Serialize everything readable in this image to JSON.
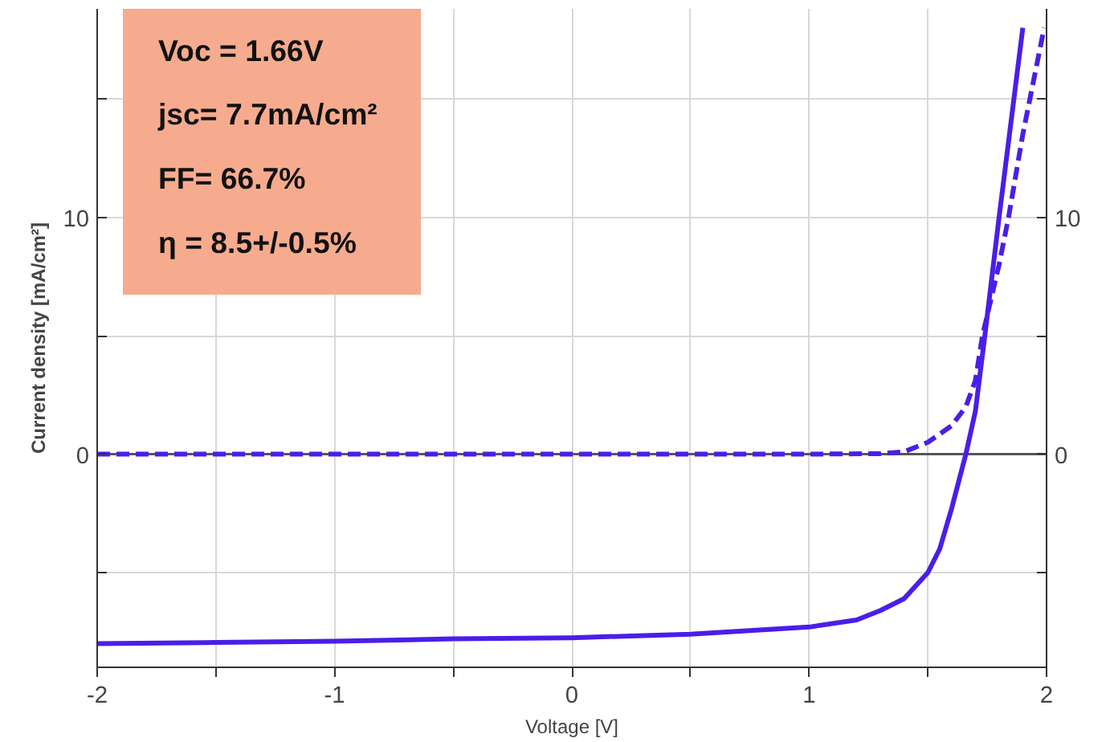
{
  "chart_data": {
    "type": "line",
    "xlabel": "Voltage [V]",
    "ylabel": "Current density [mA/cm²]",
    "xlim": [
      -2,
      2
    ],
    "ylim": [
      -9,
      18.8
    ],
    "y2lim": [
      -9,
      18.8
    ],
    "xticks": [
      -2,
      {
        "value": -1.5,
        "label": null
      },
      -1,
      {
        "value": -0.5,
        "label": null
      },
      0,
      {
        "value": 0.5,
        "label": null
      },
      1,
      {
        "value": 1.5,
        "label": null
      },
      2
    ],
    "yticks": [
      {
        "value": -5,
        "label": null
      },
      0,
      {
        "value": 5,
        "label": null
      },
      10,
      {
        "value": 15,
        "label": null
      }
    ],
    "y2ticks": [
      {
        "value": -5,
        "label": null
      },
      0,
      {
        "value": 5,
        "label": null
      },
      10,
      {
        "value": 15,
        "label": null
      }
    ],
    "grid": true,
    "marker": "none",
    "ref_lines": [
      {
        "axis": "y",
        "value": 0,
        "color": "#555555"
      }
    ],
    "series": [
      {
        "color": "#4a1ee8",
        "line_style": "solid",
        "x": [
          -2,
          -1.5,
          -1,
          -0.5,
          0,
          0.5,
          1,
          1.2,
          1.3,
          1.4,
          1.5,
          1.55,
          1.6,
          1.66,
          1.7,
          1.74,
          1.8,
          1.85,
          1.9
        ],
        "values": [
          -8.0,
          -7.95,
          -7.9,
          -7.8,
          -7.75,
          -7.6,
          -7.3,
          -7.0,
          -6.6,
          -6.1,
          -5.0,
          -4.0,
          -2.3,
          0,
          1.8,
          5,
          10,
          14,
          18
        ]
      },
      {
        "color": "#4a1ee8",
        "line_style": "dashed",
        "x": [
          -2,
          -1,
          0,
          1,
          1.3,
          1.4,
          1.5,
          1.6,
          1.66,
          1.7,
          1.73,
          1.8,
          1.84,
          1.9,
          1.99
        ],
        "values": [
          0,
          0,
          0,
          0,
          0.02,
          0.1,
          0.5,
          1.2,
          2.0,
          3.1,
          5,
          8,
          10,
          13.5,
          18
        ]
      }
    ],
    "annotations": [
      "Voc =  1.66V",
      "jsc=  7.7mA/cm²",
      "FF=  66.7%",
      "η =  8.5+/-0.5%"
    ]
  }
}
